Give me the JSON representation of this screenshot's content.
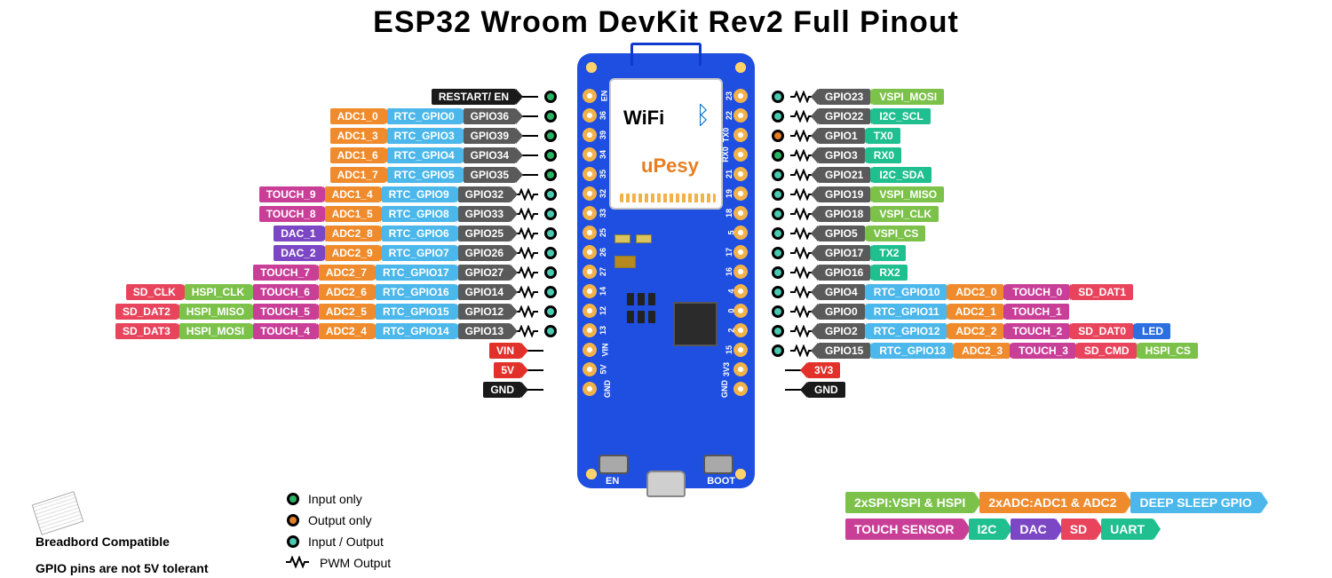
{
  "title": "ESP32 Wroom DevKit Rev2 Full Pinout",
  "colors": {
    "gpio": "#5a5a5a",
    "rtc": "#4bb7ea",
    "adc": "#ef8b2c",
    "touch": "#c93f97",
    "dac": "#7b47c5",
    "sd": "#e8455d",
    "hspi_vspi": "#7cc24a",
    "uart": "#1fbf8f",
    "i2c": "#1fbf8f",
    "pwr_red": "#e2302a",
    "pwr_black": "#1a1a1a",
    "led": "#2c6fe0",
    "board": "#1f4fe0"
  },
  "io_modes": {
    "input": {
      "fill": "#28b463",
      "ring": "#000000",
      "label": "Input only"
    },
    "output": {
      "fill": "#e67e22",
      "ring": "#000000",
      "label": "Output only"
    },
    "both": {
      "fill": "#48c9b0",
      "ring": "#000000",
      "label": "Input / Output"
    },
    "pwm": {
      "label": "PWM Output"
    }
  },
  "notes": {
    "breadboard": "Breadbord Compatible",
    "tolerant": "GPIO pins are not 5V tolerant"
  },
  "board": {
    "left_silks": [
      "EN",
      "36",
      "39",
      "34",
      "35",
      "32",
      "33",
      "25",
      "26",
      "27",
      "14",
      "12",
      "13",
      "VIN",
      "5V",
      "GND"
    ],
    "right_silks": [
      "23",
      "22",
      "TX0",
      "RX0",
      "21",
      "19",
      "18",
      "5",
      "17",
      "16",
      "4",
      "0",
      "2",
      "15",
      "3V3",
      "GND"
    ],
    "en_label": "EN",
    "boot_label": "BOOT",
    "wifi": "WiFi",
    "bt": "✱",
    "brand": "uPesy"
  },
  "left_pins": [
    {
      "io": "input",
      "pwm": false,
      "tags": [
        [
          "RESTART/ EN",
          "pwr_black"
        ]
      ]
    },
    {
      "io": "input",
      "pwm": false,
      "tags": [
        [
          "GPIO36",
          "gpio"
        ],
        [
          "RTC_GPIO0",
          "rtc"
        ],
        [
          "ADC1_0",
          "adc"
        ]
      ]
    },
    {
      "io": "input",
      "pwm": false,
      "tags": [
        [
          "GPIO39",
          "gpio"
        ],
        [
          "RTC_GPIO3",
          "rtc"
        ],
        [
          "ADC1_3",
          "adc"
        ]
      ]
    },
    {
      "io": "input",
      "pwm": false,
      "tags": [
        [
          "GPIO34",
          "gpio"
        ],
        [
          "RTC_GPIO4",
          "rtc"
        ],
        [
          "ADC1_6",
          "adc"
        ]
      ]
    },
    {
      "io": "input",
      "pwm": false,
      "tags": [
        [
          "GPIO35",
          "gpio"
        ],
        [
          "RTC_GPIO5",
          "rtc"
        ],
        [
          "ADC1_7",
          "adc"
        ]
      ]
    },
    {
      "io": "both",
      "pwm": true,
      "tags": [
        [
          "GPIO32",
          "gpio"
        ],
        [
          "RTC_GPIO9",
          "rtc"
        ],
        [
          "ADC1_4",
          "adc"
        ],
        [
          "TOUCH_9",
          "touch"
        ]
      ]
    },
    {
      "io": "both",
      "pwm": true,
      "tags": [
        [
          "GPIO33",
          "gpio"
        ],
        [
          "RTC_GPIO8",
          "rtc"
        ],
        [
          "ADC1_5",
          "adc"
        ],
        [
          "TOUCH_8",
          "touch"
        ]
      ]
    },
    {
      "io": "both",
      "pwm": true,
      "tags": [
        [
          "GPIO25",
          "gpio"
        ],
        [
          "RTC_GPIO6",
          "rtc"
        ],
        [
          "ADC2_8",
          "adc"
        ],
        [
          "DAC_1",
          "dac"
        ]
      ]
    },
    {
      "io": "both",
      "pwm": true,
      "tags": [
        [
          "GPIO26",
          "gpio"
        ],
        [
          "RTC_GPIO7",
          "rtc"
        ],
        [
          "ADC2_9",
          "adc"
        ],
        [
          "DAC_2",
          "dac"
        ]
      ]
    },
    {
      "io": "both",
      "pwm": true,
      "tags": [
        [
          "GPIO27",
          "gpio"
        ],
        [
          "RTC_GPIO17",
          "rtc"
        ],
        [
          "ADC2_7",
          "adc"
        ],
        [
          "TOUCH_7",
          "touch"
        ]
      ]
    },
    {
      "io": "both",
      "pwm": true,
      "tags": [
        [
          "GPIO14",
          "gpio"
        ],
        [
          "RTC_GPIO16",
          "rtc"
        ],
        [
          "ADC2_6",
          "adc"
        ],
        [
          "TOUCH_6",
          "touch"
        ],
        [
          "HSPI_CLK",
          "hspi_vspi"
        ],
        [
          "SD_CLK",
          "sd"
        ]
      ]
    },
    {
      "io": "both",
      "pwm": true,
      "tags": [
        [
          "GPIO12",
          "gpio"
        ],
        [
          "RTC_GPIO15",
          "rtc"
        ],
        [
          "ADC2_5",
          "adc"
        ],
        [
          "TOUCH_5",
          "touch"
        ],
        [
          "HSPI_MISO",
          "hspi_vspi"
        ],
        [
          "SD_DAT2",
          "sd"
        ]
      ]
    },
    {
      "io": "both",
      "pwm": true,
      "tags": [
        [
          "GPIO13",
          "gpio"
        ],
        [
          "RTC_GPIO14",
          "rtc"
        ],
        [
          "ADC2_4",
          "adc"
        ],
        [
          "TOUCH_4",
          "touch"
        ],
        [
          "HSPI_MOSI",
          "hspi_vspi"
        ],
        [
          "SD_DAT3",
          "sd"
        ]
      ]
    },
    {
      "io": null,
      "pwm": false,
      "tags": [
        [
          "VIN",
          "pwr_red"
        ]
      ]
    },
    {
      "io": null,
      "pwm": false,
      "tags": [
        [
          "5V",
          "pwr_red"
        ]
      ]
    },
    {
      "io": null,
      "pwm": false,
      "tags": [
        [
          "GND",
          "pwr_black"
        ]
      ]
    }
  ],
  "right_pins": [
    {
      "io": "both",
      "pwm": true,
      "tags": [
        [
          "GPIO23",
          "gpio"
        ],
        [
          "VSPI_MOSI",
          "hspi_vspi"
        ]
      ]
    },
    {
      "io": "both",
      "pwm": true,
      "tags": [
        [
          "GPIO22",
          "gpio"
        ],
        [
          "I2C_SCL",
          "i2c"
        ]
      ]
    },
    {
      "io": "output",
      "pwm": true,
      "tags": [
        [
          "GPIO1",
          "gpio"
        ],
        [
          "TX0",
          "uart"
        ]
      ]
    },
    {
      "io": "input",
      "pwm": true,
      "tags": [
        [
          "GPIO3",
          "gpio"
        ],
        [
          "RX0",
          "uart"
        ]
      ]
    },
    {
      "io": "both",
      "pwm": true,
      "tags": [
        [
          "GPIO21",
          "gpio"
        ],
        [
          "I2C_SDA",
          "i2c"
        ]
      ]
    },
    {
      "io": "both",
      "pwm": true,
      "tags": [
        [
          "GPIO19",
          "gpio"
        ],
        [
          "VSPI_MISO",
          "hspi_vspi"
        ]
      ]
    },
    {
      "io": "both",
      "pwm": true,
      "tags": [
        [
          "GPIO18",
          "gpio"
        ],
        [
          "VSPI_CLK",
          "hspi_vspi"
        ]
      ]
    },
    {
      "io": "both",
      "pwm": true,
      "tags": [
        [
          "GPIO5",
          "gpio"
        ],
        [
          "VSPI_CS",
          "hspi_vspi"
        ]
      ]
    },
    {
      "io": "both",
      "pwm": true,
      "tags": [
        [
          "GPIO17",
          "gpio"
        ],
        [
          "TX2",
          "uart"
        ]
      ]
    },
    {
      "io": "both",
      "pwm": true,
      "tags": [
        [
          "GPIO16",
          "gpio"
        ],
        [
          "RX2",
          "uart"
        ]
      ]
    },
    {
      "io": "both",
      "pwm": true,
      "tags": [
        [
          "GPIO4",
          "gpio"
        ],
        [
          "RTC_GPIO10",
          "rtc"
        ],
        [
          "ADC2_0",
          "adc"
        ],
        [
          "TOUCH_0",
          "touch"
        ],
        [
          "SD_DAT1",
          "sd"
        ]
      ]
    },
    {
      "io": "both",
      "pwm": true,
      "tags": [
        [
          "GPIO0",
          "gpio"
        ],
        [
          "RTC_GPIO11",
          "rtc"
        ],
        [
          "ADC2_1",
          "adc"
        ],
        [
          "TOUCH_1",
          "touch"
        ]
      ]
    },
    {
      "io": "both",
      "pwm": true,
      "tags": [
        [
          "GPIO2",
          "gpio"
        ],
        [
          "RTC_GPIO12",
          "rtc"
        ],
        [
          "ADC2_2",
          "adc"
        ],
        [
          "TOUCH_2",
          "touch"
        ],
        [
          "SD_DAT0",
          "sd"
        ],
        [
          "LED",
          "led"
        ]
      ]
    },
    {
      "io": "both",
      "pwm": true,
      "tags": [
        [
          "GPIO15",
          "gpio"
        ],
        [
          "RTC_GPIO13",
          "rtc"
        ],
        [
          "ADC2_3",
          "adc"
        ],
        [
          "TOUCH_3",
          "touch"
        ],
        [
          "SD_CMD",
          "sd"
        ],
        [
          "HSPI_CS",
          "hspi_vspi"
        ]
      ]
    },
    {
      "io": null,
      "pwm": false,
      "tags": [
        [
          "3V3",
          "pwr_red"
        ]
      ]
    },
    {
      "io": null,
      "pwm": false,
      "tags": [
        [
          "GND",
          "pwr_black"
        ]
      ]
    }
  ],
  "legend_chips": [
    [
      "2xSPI:VSPI & HSPI",
      "hspi_vspi"
    ],
    [
      "2xADC:ADC1 & ADC2",
      "adc"
    ],
    [
      "DEEP SLEEP GPIO",
      "rtc"
    ],
    [
      "TOUCH SENSOR",
      "touch"
    ],
    [
      "I2C",
      "i2c"
    ],
    [
      "DAC",
      "dac"
    ],
    [
      "SD",
      "sd"
    ],
    [
      "UART",
      "uart"
    ]
  ]
}
